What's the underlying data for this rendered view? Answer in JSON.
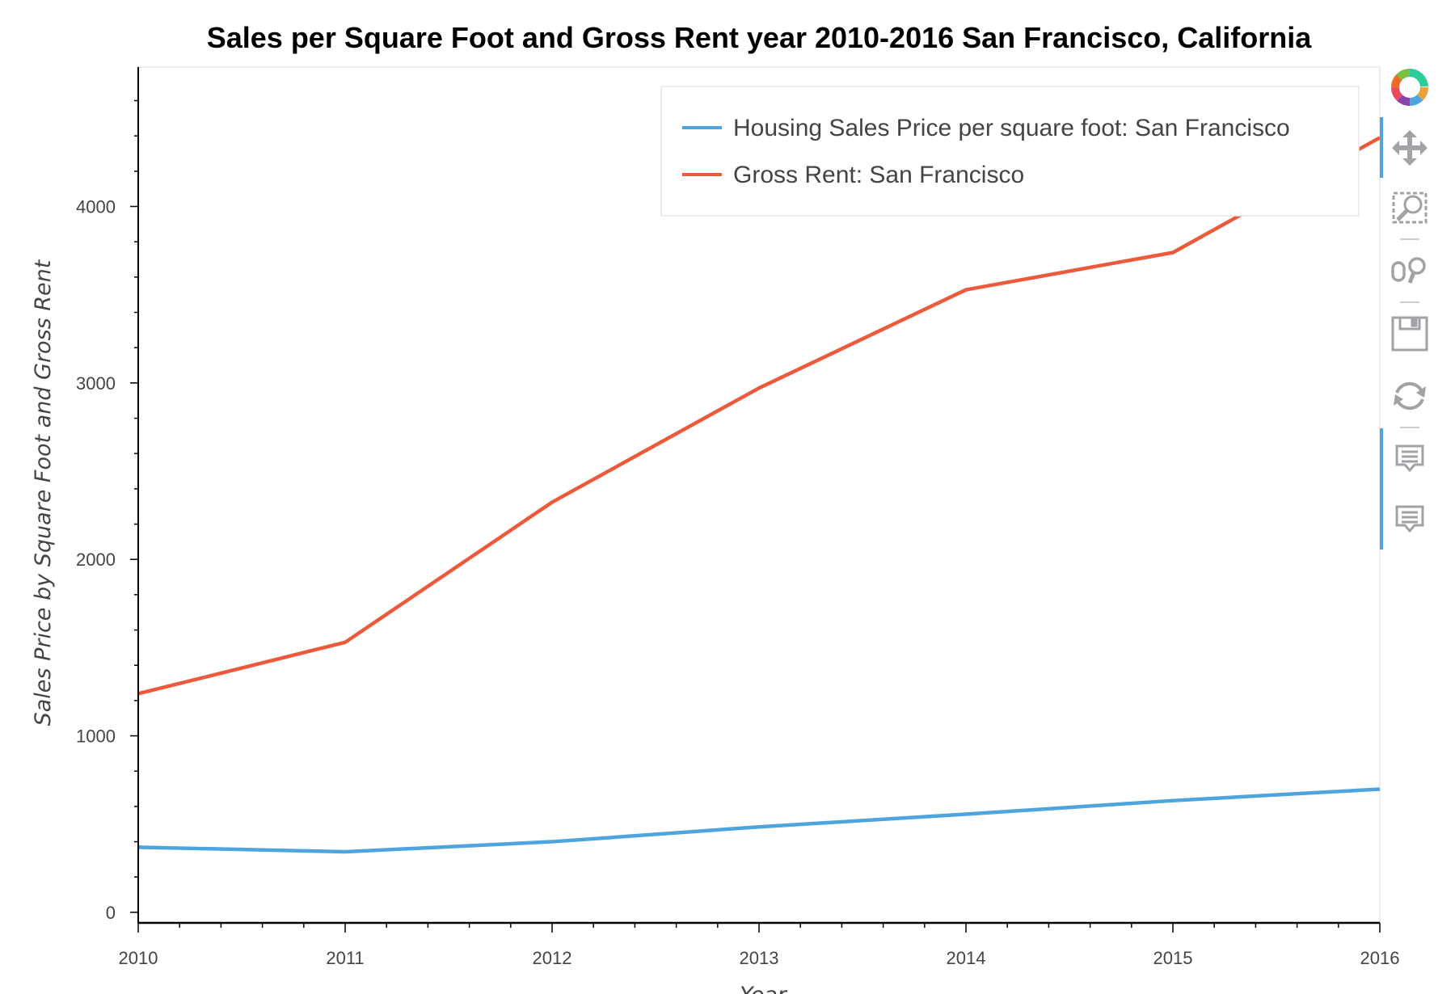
{
  "chart_data": {
    "type": "line",
    "title": "Sales per Square Foot and Gross Rent year 2010-2016 San Francisco, California",
    "xlabel": "Year",
    "ylabel": "Sales Price by Square Foot and Gross Rent",
    "x": [
      2010,
      2011,
      2012,
      2013,
      2014,
      2015,
      2016
    ],
    "x_ticks": [
      "2010",
      "2011",
      "2012",
      "2013",
      "2014",
      "2015",
      "2016"
    ],
    "y_ticks": [
      "0",
      "1000",
      "2000",
      "3000",
      "4000"
    ],
    "xlim": [
      2010,
      2016
    ],
    "ylim": [
      -60,
      4790
    ],
    "grid": false,
    "legend_position": "top-right",
    "series": [
      {
        "name": "Housing Sales Price per square foot: San Francisco",
        "color": "#4ea5de",
        "values": [
          369,
          343,
          400,
          484,
          556,
          633,
          698
        ]
      },
      {
        "name": "Gross Rent: San Francisco",
        "color": "#ed5a3b",
        "values": [
          1239,
          1530,
          2324,
          2971,
          3528,
          3739,
          4390
        ]
      }
    ]
  },
  "toolbar": {
    "items": [
      {
        "icon": "bokeh-logo-icon",
        "active": false
      },
      {
        "icon": "pan-icon",
        "active": true
      },
      {
        "icon": "box-zoom-icon",
        "active": false
      },
      {
        "icon": "wheel-zoom-icon",
        "active": false
      },
      {
        "icon": "save-icon",
        "active": false
      },
      {
        "icon": "reset-icon",
        "active": false
      },
      {
        "icon": "hover-icon",
        "active": true
      },
      {
        "icon": "hover-icon",
        "active": true
      }
    ],
    "active_color": "#4ea5de"
  }
}
